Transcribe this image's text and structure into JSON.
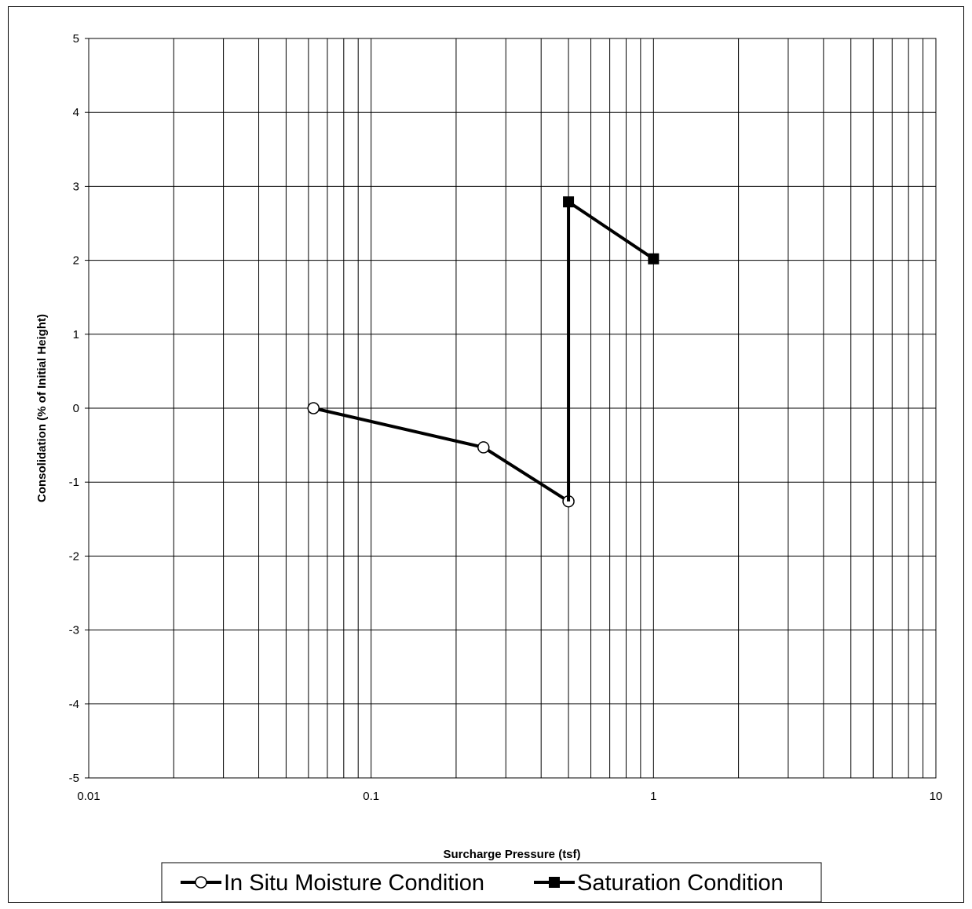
{
  "chart_data": {
    "type": "scatter",
    "title": "",
    "xlabel": "Surcharge Pressure (tsf)",
    "ylabel": "Consolidation (% of Initial Height)",
    "xscale": "log",
    "xlim": [
      0.01,
      10
    ],
    "ylim": [
      -5,
      5
    ],
    "x_tick_labels": [
      "0.01",
      "0.1",
      "1",
      "10"
    ],
    "y_tick_labels": [
      "5",
      "4",
      "3",
      "2",
      "1",
      "0",
      "-1",
      "-2",
      "-3",
      "-4",
      "-5"
    ],
    "grid": true,
    "legend_position": "bottom",
    "series": [
      {
        "name": "In Situ Moisture Condition",
        "marker": "open-circle",
        "color": "#000000",
        "x": [
          0.0625,
          0.25,
          0.5
        ],
        "y": [
          0.0,
          -0.53,
          -1.26
        ]
      },
      {
        "name": "Saturation Condition",
        "marker": "filled-square",
        "color": "#000000",
        "x": [
          0.5,
          0.5,
          1.0
        ],
        "y": [
          -1.26,
          2.79,
          2.02
        ]
      }
    ]
  }
}
